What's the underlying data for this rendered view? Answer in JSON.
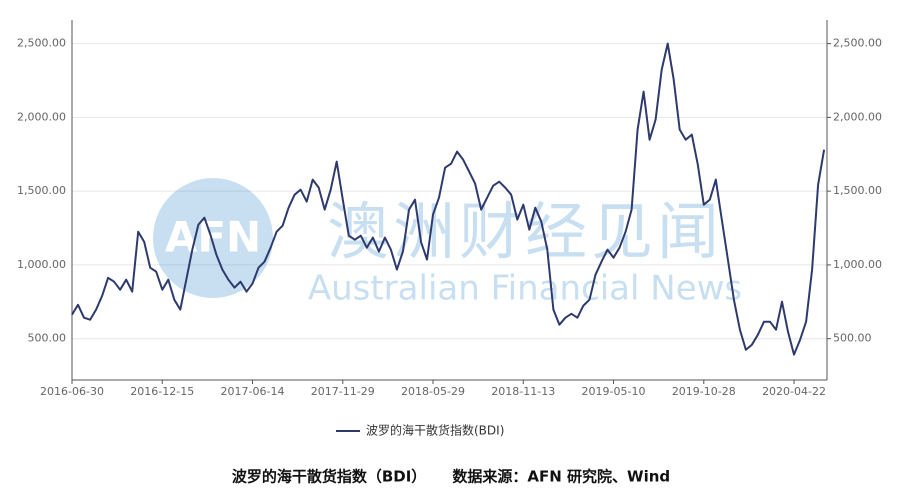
{
  "chart_data": {
    "type": "line",
    "categories": [
      "2016-06-30",
      null,
      null,
      null,
      null,
      null,
      null,
      null,
      null,
      null,
      null,
      null,
      null,
      null,
      null,
      "2016-12-15",
      null,
      null,
      null,
      null,
      null,
      null,
      null,
      null,
      null,
      null,
      null,
      null,
      null,
      null,
      "2017-06-14",
      null,
      null,
      null,
      null,
      null,
      null,
      null,
      null,
      null,
      null,
      null,
      null,
      null,
      null,
      "2017-11-29",
      null,
      null,
      null,
      null,
      null,
      null,
      null,
      null,
      null,
      null,
      null,
      null,
      null,
      null,
      "2018-05-29",
      null,
      null,
      null,
      null,
      null,
      null,
      null,
      null,
      null,
      null,
      null,
      null,
      null,
      null,
      "2018-11-13",
      null,
      null,
      null,
      null,
      null,
      null,
      null,
      null,
      null,
      null,
      null,
      null,
      null,
      null,
      "2019-05-10",
      null,
      null,
      null,
      null,
      null,
      null,
      null,
      null,
      null,
      null,
      null,
      null,
      null,
      null,
      "2019-10-28",
      null,
      null,
      null,
      null,
      null,
      null,
      null,
      null,
      null,
      null,
      null,
      null,
      null,
      null,
      "2020-04-22",
      null,
      null,
      null,
      null,
      null
    ],
    "series": [
      {
        "name": "波罗的海干散货指数(BDI)",
        "color": "#2e3a6e",
        "values": [
          663,
          730,
          642,
          629,
          697,
          790,
          913,
          886,
          832,
          900,
          819,
          1225,
          1156,
          981,
          954,
          832,
          900,
          764,
          697,
          900,
          1103,
          1273,
          1320,
          1205,
          1069,
          968,
          900,
          846,
          886,
          819,
          873,
          981,
          1022,
          1117,
          1225,
          1266,
          1388,
          1476,
          1510,
          1429,
          1578,
          1524,
          1375,
          1510,
          1700,
          1442,
          1198,
          1171,
          1198,
          1117,
          1185,
          1090,
          1185,
          1103,
          968,
          1090,
          1375,
          1442,
          1156,
          1036,
          1341,
          1456,
          1659,
          1686,
          1768,
          1714,
          1633,
          1551,
          1375,
          1456,
          1537,
          1564,
          1524,
          1476,
          1307,
          1408,
          1239,
          1388,
          1293,
          1103,
          697,
          595,
          642,
          669,
          642,
          724,
          764,
          934,
          1022,
          1103,
          1049,
          1117,
          1225,
          1375,
          1917,
          2175,
          1849,
          1985,
          2324,
          2500,
          2256,
          1917,
          1849,
          1883,
          1680,
          1408,
          1442,
          1578,
          1307,
          1036,
          764,
          561,
          425,
          459,
          527,
          615,
          615,
          561,
          751,
          547,
          392,
          493,
          615,
          968,
          1544,
          1781
        ]
      }
    ],
    "ylim": [
      220,
      2660
    ],
    "yticks": [
      {
        "value": 500,
        "label": "500.00"
      },
      {
        "value": 1000,
        "label": "1,000.00"
      },
      {
        "value": 1500,
        "label": "1,500.00"
      },
      {
        "value": 2000,
        "label": "2,000.00"
      },
      {
        "value": 2500,
        "label": "2,500.00"
      }
    ],
    "y2lim": [
      220,
      2660
    ],
    "y2ticks": [
      {
        "value": 500,
        "label": "500.00"
      },
      {
        "value": 1000,
        "label": "1,000.00"
      },
      {
        "value": 1500,
        "label": "1,500.00"
      },
      {
        "value": 2000,
        "label": "2,000.00"
      },
      {
        "value": 2500,
        "label": "2,500.00"
      }
    ],
    "grid": true,
    "legend": "bottom",
    "watermark": {
      "logo": "AFN",
      "cn": "澳洲财经见闻",
      "en": "Australian Financial News"
    },
    "caption": "波罗的海干散货指数（BDI）     数据来源：AFN 研究院、Wind"
  }
}
